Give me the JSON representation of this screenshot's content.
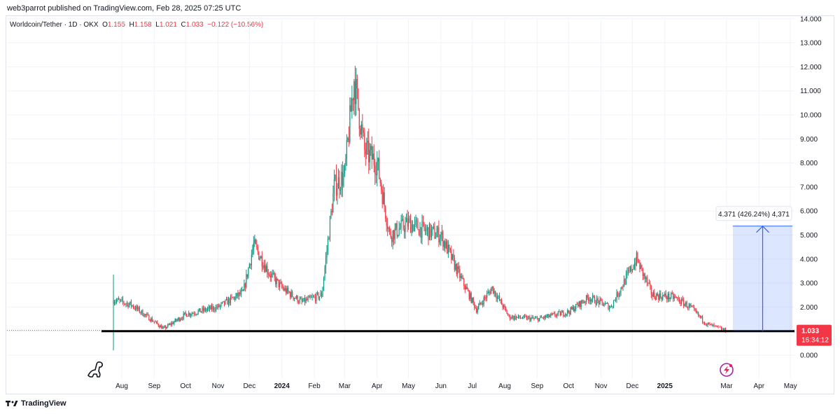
{
  "header": {
    "published": "web3parrot published on TradingView.com, Feb 28, 2025 07:25 UTC"
  },
  "legend": {
    "symbol": "Worldcoin/Tether · 1D · OKX",
    "o_label": "O",
    "o": "1.155",
    "h_label": "H",
    "h": "1.158",
    "l_label": "L",
    "l": "1.021",
    "c_label": "C",
    "c": "1.033",
    "change": "−0.122 (−10.56%)"
  },
  "footer": {
    "brand": "TradingView"
  },
  "colors": {
    "up": "#089981",
    "down": "#f23645",
    "measure": "#2962ff",
    "support": "#000000"
  },
  "chart_data": {
    "type": "candlestick",
    "yaxis": {
      "ticks": [
        "0.000",
        "1.000",
        "2.000",
        "3.000",
        "4.000",
        "5.000",
        "6.000",
        "7.000",
        "8.000",
        "9.000",
        "10.000",
        "11.000",
        "12.000",
        "13.000",
        "14.000"
      ],
      "ylim": [
        0,
        14
      ]
    },
    "xaxis": {
      "ticks": [
        {
          "label": "Aug",
          "date": "2023-08-01"
        },
        {
          "label": "Sep",
          "date": "2023-09-01"
        },
        {
          "label": "Oct",
          "date": "2023-10-01"
        },
        {
          "label": "Nov",
          "date": "2023-11-01"
        },
        {
          "label": "Dec",
          "date": "2023-12-01"
        },
        {
          "label": "2024",
          "date": "2024-01-01",
          "bold": true
        },
        {
          "label": "Feb",
          "date": "2024-02-01"
        },
        {
          "label": "Mar",
          "date": "2024-03-01"
        },
        {
          "label": "Apr",
          "date": "2024-04-01"
        },
        {
          "label": "May",
          "date": "2024-05-01"
        },
        {
          "label": "Jun",
          "date": "2024-06-01"
        },
        {
          "label": "Jul",
          "date": "2024-07-01"
        },
        {
          "label": "Aug",
          "date": "2024-08-01"
        },
        {
          "label": "Sep",
          "date": "2024-09-01"
        },
        {
          "label": "Oct",
          "date": "2024-10-01"
        },
        {
          "label": "Nov",
          "date": "2024-11-01"
        },
        {
          "label": "Dec",
          "date": "2024-12-01"
        },
        {
          "label": "2025",
          "date": "2025-01-01",
          "bold": true
        },
        {
          "label": "Mar",
          "date": "2025-03-01"
        },
        {
          "label": "Apr",
          "date": "2025-04-01"
        },
        {
          "label": "May",
          "date": "2025-05-01"
        }
      ]
    },
    "key_prices": [
      {
        "date": "2023-07-24",
        "close": 2.3
      },
      {
        "date": "2023-08-10",
        "close": 2.1
      },
      {
        "date": "2023-09-10",
        "close": 1.1
      },
      {
        "date": "2023-10-01",
        "close": 1.7
      },
      {
        "date": "2023-11-01",
        "close": 2.0
      },
      {
        "date": "2023-11-25",
        "close": 2.6
      },
      {
        "date": "2023-12-05",
        "close": 4.6
      },
      {
        "date": "2023-12-20",
        "close": 3.4
      },
      {
        "date": "2024-01-01",
        "close": 2.8
      },
      {
        "date": "2024-01-20",
        "close": 2.2
      },
      {
        "date": "2024-02-08",
        "close": 2.5
      },
      {
        "date": "2024-02-20",
        "close": 7.0
      },
      {
        "date": "2024-03-01",
        "close": 7.5
      },
      {
        "date": "2024-03-10",
        "close": 11.5
      },
      {
        "date": "2024-03-20",
        "close": 8.5
      },
      {
        "date": "2024-04-01",
        "close": 8.0
      },
      {
        "date": "2024-04-13",
        "close": 5.0
      },
      {
        "date": "2024-05-01",
        "close": 5.5
      },
      {
        "date": "2024-05-15",
        "close": 5.2
      },
      {
        "date": "2024-06-01",
        "close": 5.0
      },
      {
        "date": "2024-06-20",
        "close": 3.2
      },
      {
        "date": "2024-07-05",
        "close": 1.9
      },
      {
        "date": "2024-07-20",
        "close": 2.8
      },
      {
        "date": "2024-08-05",
        "close": 1.6
      },
      {
        "date": "2024-09-01",
        "close": 1.5
      },
      {
        "date": "2024-10-01",
        "close": 1.8
      },
      {
        "date": "2024-10-20",
        "close": 2.4
      },
      {
        "date": "2024-11-10",
        "close": 2.0
      },
      {
        "date": "2024-12-05",
        "close": 4.0
      },
      {
        "date": "2024-12-20",
        "close": 2.5
      },
      {
        "date": "2025-01-10",
        "close": 2.4
      },
      {
        "date": "2025-01-25",
        "close": 2.0
      },
      {
        "date": "2025-02-10",
        "close": 1.3
      },
      {
        "date": "2025-02-28",
        "close": 1.033
      }
    ],
    "last_price": {
      "value": "1.033",
      "countdown": "16:34:12"
    },
    "support_level": 1.0,
    "measure": {
      "label": "4.371 (426.24%) 4,371",
      "from": 1.0,
      "to": 5.37,
      "start": "2025-03-07",
      "end": "2025-05-03"
    }
  }
}
